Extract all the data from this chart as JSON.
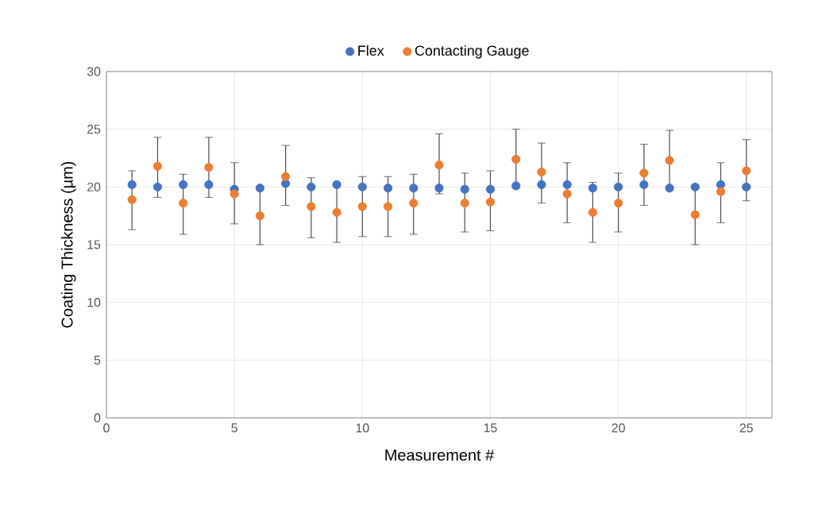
{
  "chart_data": {
    "type": "scatter",
    "xlabel": "Measurement #",
    "ylabel": "Coating Thickness (µm)",
    "x": [
      1,
      2,
      3,
      4,
      5,
      6,
      7,
      8,
      9,
      10,
      11,
      12,
      13,
      14,
      15,
      16,
      17,
      18,
      19,
      20,
      21,
      22,
      23,
      24,
      25
    ],
    "series": [
      {
        "name": "Flex",
        "color": "#4472c4",
        "values": [
          20.2,
          20.0,
          20.2,
          20.2,
          19.8,
          19.9,
          20.3,
          20.0,
          20.2,
          20.0,
          19.9,
          19.9,
          19.9,
          19.8,
          19.8,
          20.1,
          20.2,
          20.2,
          19.9,
          20.0,
          20.2,
          19.9,
          20.0,
          20.2,
          20.0
        ]
      },
      {
        "name": "Contacting Gauge",
        "color": "#ed7d31",
        "values": [
          18.9,
          21.8,
          18.6,
          21.7,
          19.4,
          17.5,
          20.9,
          18.3,
          17.8,
          18.3,
          18.3,
          18.6,
          21.9,
          18.6,
          18.7,
          22.4,
          21.3,
          19.4,
          17.8,
          18.6,
          21.2,
          22.3,
          17.6,
          19.6,
          21.4
        ],
        "errors": [
          [
            16.3,
            21.4
          ],
          [
            19.1,
            24.3
          ],
          [
            15.9,
            21.1
          ],
          [
            19.1,
            24.3
          ],
          [
            16.8,
            22.1
          ],
          [
            15.0,
            20.0
          ],
          [
            18.4,
            23.6
          ],
          [
            15.6,
            20.8
          ],
          [
            15.2,
            20.4
          ],
          [
            15.7,
            20.9
          ],
          [
            15.7,
            20.9
          ],
          [
            15.9,
            21.1
          ],
          [
            19.4,
            24.6
          ],
          [
            16.1,
            21.2
          ],
          [
            16.2,
            21.4
          ],
          [
            19.9,
            25.0
          ],
          [
            18.6,
            23.8
          ],
          [
            16.9,
            22.1
          ],
          [
            15.2,
            20.4
          ],
          [
            16.1,
            21.2
          ],
          [
            18.4,
            23.7
          ],
          [
            19.7,
            24.9
          ],
          [
            15.0,
            20.2
          ],
          [
            16.9,
            22.1
          ],
          [
            18.8,
            24.1
          ]
        ]
      }
    ],
    "xlim": [
      0,
      26
    ],
    "xticks": [
      0,
      5,
      10,
      15,
      20,
      25
    ],
    "ylim": [
      0,
      30
    ],
    "yticks": [
      0,
      5,
      10,
      15,
      20,
      25,
      30
    ],
    "grid": true,
    "legend": "top",
    "marker": "circle"
  }
}
